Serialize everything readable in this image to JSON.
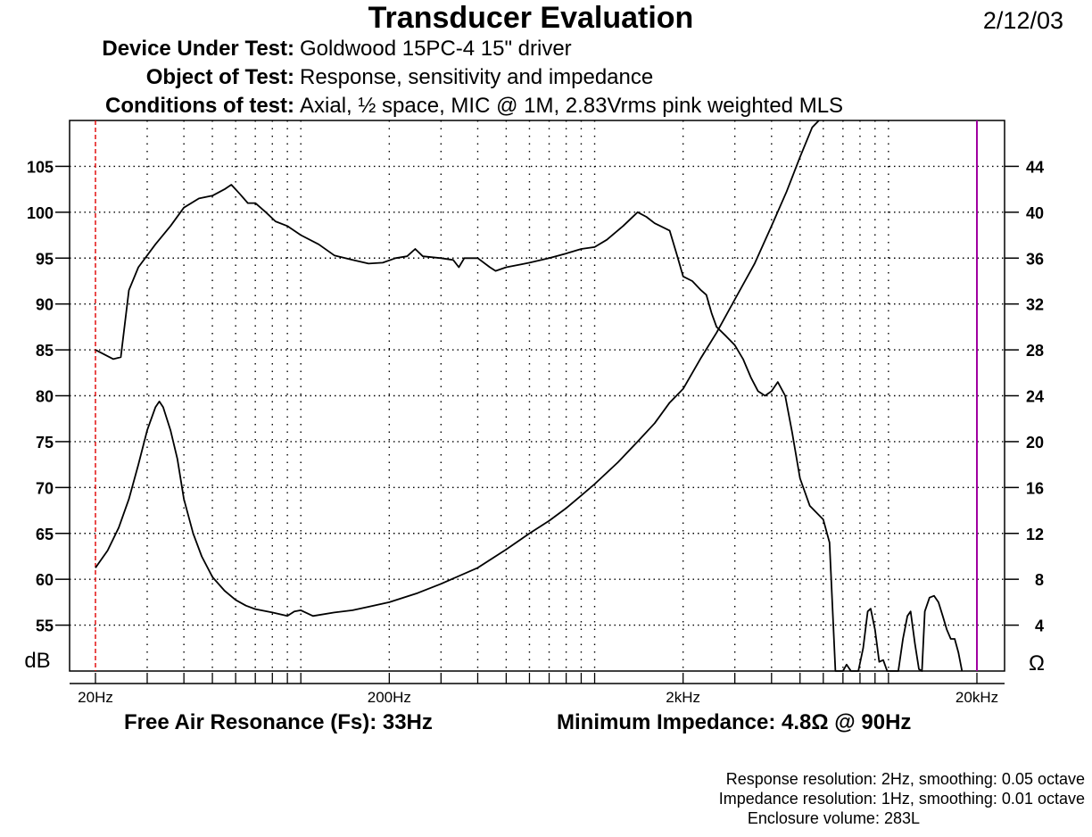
{
  "header": {
    "title": "Transducer Evaluation",
    "date": "2/12/03",
    "device_label": "Device Under Test:",
    "device_value": "Goldwood 15PC-4 15\" driver",
    "object_label": "Object of Test:",
    "object_value": "Response, sensitivity and impedance",
    "conditions_label": "Conditions of test:",
    "conditions_value": "Axial, ½ space, MIC @ 1M, 2.83Vrms pink weighted MLS"
  },
  "results": {
    "fs": "Free Air Resonance (Fs): 33Hz",
    "min_impedance": "Minimum Impedance: 4.8Ω @ 90Hz"
  },
  "footer": {
    "response_res": "Response resolution: 2Hz, smoothing: 0.05 octave",
    "impedance_res": "Impedance resolution: 1Hz, smoothing: 0.01 octave",
    "enclosure": "Enclosure volume: 283L"
  },
  "colors": {
    "marker_low": "#e00000",
    "marker_high": "#a000a0",
    "trace": "#000000",
    "grid": "#000000"
  },
  "chart_data": {
    "type": "line",
    "x_scale": "log",
    "xlim": [
      20,
      20000
    ],
    "x_ticks": [
      {
        "value": 20,
        "label": "20Hz"
      },
      {
        "value": 200,
        "label": "200Hz"
      },
      {
        "value": 2000,
        "label": "2kHz"
      },
      {
        "value": 20000,
        "label": "20kHz"
      }
    ],
    "ylim_left": [
      50,
      110
    ],
    "ylim_right": [
      0,
      48
    ],
    "y_ticks_left": [
      55,
      60,
      65,
      70,
      75,
      80,
      85,
      90,
      95,
      100,
      105
    ],
    "y_ticks_right": [
      4,
      8,
      12,
      16,
      20,
      24,
      28,
      32,
      36,
      40,
      44
    ],
    "ylabel_left": "dB",
    "ylabel_right": "Ω",
    "grid": true,
    "markers": [
      {
        "x": 20,
        "color_key": "marker_low"
      },
      {
        "x": 20000,
        "color_key": "marker_high"
      }
    ],
    "series": [
      {
        "axis": "left",
        "points": [
          [
            20,
            85
          ],
          [
            23,
            84
          ],
          [
            24.4,
            84.2
          ],
          [
            26,
            91.5
          ],
          [
            28,
            94
          ],
          [
            32,
            96.5
          ],
          [
            36,
            98.5
          ],
          [
            40,
            100.5
          ],
          [
            45,
            101.5
          ],
          [
            50,
            101.8
          ],
          [
            55,
            102.5
          ],
          [
            58,
            103
          ],
          [
            62,
            102
          ],
          [
            66,
            101
          ],
          [
            70,
            101
          ],
          [
            76,
            100
          ],
          [
            82,
            99
          ],
          [
            90,
            98.5
          ],
          [
            100,
            97.5
          ],
          [
            115,
            96.5
          ],
          [
            130,
            95.3
          ],
          [
            150,
            94.8
          ],
          [
            170,
            94.4
          ],
          [
            190,
            94.5
          ],
          [
            210,
            95
          ],
          [
            230,
            95.2
          ],
          [
            245,
            96
          ],
          [
            260,
            95.2
          ],
          [
            300,
            95
          ],
          [
            330,
            94.8
          ],
          [
            345,
            94
          ],
          [
            360,
            95
          ],
          [
            400,
            95
          ],
          [
            440,
            94
          ],
          [
            460,
            93.6
          ],
          [
            500,
            94
          ],
          [
            560,
            94.3
          ],
          [
            600,
            94.5
          ],
          [
            700,
            95
          ],
          [
            800,
            95.5
          ],
          [
            900,
            96
          ],
          [
            1000,
            96.2
          ],
          [
            1100,
            97
          ],
          [
            1250,
            98.5
          ],
          [
            1400,
            100
          ],
          [
            1500,
            99.5
          ],
          [
            1600,
            98.8
          ],
          [
            1800,
            98
          ],
          [
            1900,
            95.5
          ],
          [
            2000,
            93
          ],
          [
            2150,
            92.5
          ],
          [
            2300,
            91.5
          ],
          [
            2400,
            91
          ],
          [
            2500,
            89
          ],
          [
            2600,
            87.5
          ],
          [
            2800,
            86.5
          ],
          [
            3000,
            85.5
          ],
          [
            3200,
            84
          ],
          [
            3400,
            82
          ],
          [
            3600,
            80.5
          ],
          [
            3800,
            80
          ],
          [
            4000,
            80.5
          ],
          [
            4200,
            81.5
          ],
          [
            4450,
            80
          ],
          [
            4700,
            76
          ],
          [
            5000,
            71
          ],
          [
            5400,
            68
          ],
          [
            5800,
            67
          ],
          [
            6000,
            66.5
          ],
          [
            6300,
            64
          ],
          [
            6600,
            50
          ],
          [
            7000,
            50
          ],
          [
            7200,
            50.7
          ],
          [
            7450,
            50
          ],
          [
            7900,
            50
          ],
          [
            8200,
            52.5
          ],
          [
            8500,
            56.5
          ],
          [
            8700,
            56.8
          ],
          [
            9000,
            54.5
          ],
          [
            9300,
            51
          ],
          [
            9600,
            51.2
          ],
          [
            9900,
            50
          ],
          [
            10800,
            50
          ],
          [
            11200,
            53.5
          ],
          [
            11600,
            56
          ],
          [
            11900,
            56.5
          ],
          [
            12300,
            53
          ],
          [
            12700,
            50.2
          ],
          [
            13000,
            50
          ],
          [
            13300,
            56.5
          ],
          [
            13800,
            58
          ],
          [
            14300,
            58.2
          ],
          [
            14800,
            57.5
          ],
          [
            15300,
            56
          ],
          [
            15800,
            54.5
          ],
          [
            16300,
            53.5
          ],
          [
            16800,
            53.5
          ],
          [
            17300,
            52
          ],
          [
            17800,
            50
          ]
        ]
      },
      {
        "axis": "right",
        "points": [
          [
            20,
            9
          ],
          [
            22,
            10.5
          ],
          [
            24,
            12.5
          ],
          [
            26,
            15
          ],
          [
            28,
            18
          ],
          [
            30,
            21
          ],
          [
            32,
            23
          ],
          [
            33,
            23.5
          ],
          [
            34,
            23
          ],
          [
            36,
            21
          ],
          [
            38,
            18.5
          ],
          [
            40,
            15
          ],
          [
            43,
            12
          ],
          [
            46,
            10
          ],
          [
            50,
            8.2
          ],
          [
            55,
            7
          ],
          [
            60,
            6.2
          ],
          [
            65,
            5.7
          ],
          [
            70,
            5.4
          ],
          [
            80,
            5.1
          ],
          [
            90,
            4.8
          ],
          [
            95,
            5.2
          ],
          [
            100,
            5.3
          ],
          [
            110,
            4.8
          ],
          [
            130,
            5.1
          ],
          [
            150,
            5.3
          ],
          [
            170,
            5.6
          ],
          [
            200,
            6
          ],
          [
            250,
            6.8
          ],
          [
            300,
            7.6
          ],
          [
            400,
            9
          ],
          [
            500,
            10.6
          ],
          [
            600,
            12
          ],
          [
            700,
            13.1
          ],
          [
            800,
            14.2
          ],
          [
            900,
            15.3
          ],
          [
            1000,
            16.3
          ],
          [
            1200,
            18.2
          ],
          [
            1400,
            20
          ],
          [
            1600,
            21.6
          ],
          [
            1800,
            23.4
          ],
          [
            2000,
            24.6
          ],
          [
            2300,
            27.3
          ],
          [
            2600,
            29.5
          ],
          [
            3000,
            32.4
          ],
          [
            3500,
            35.5
          ],
          [
            4000,
            38.8
          ],
          [
            4500,
            41.8
          ],
          [
            5000,
            44.8
          ],
          [
            5500,
            47.4
          ],
          [
            5800,
            48.5
          ]
        ]
      }
    ]
  }
}
